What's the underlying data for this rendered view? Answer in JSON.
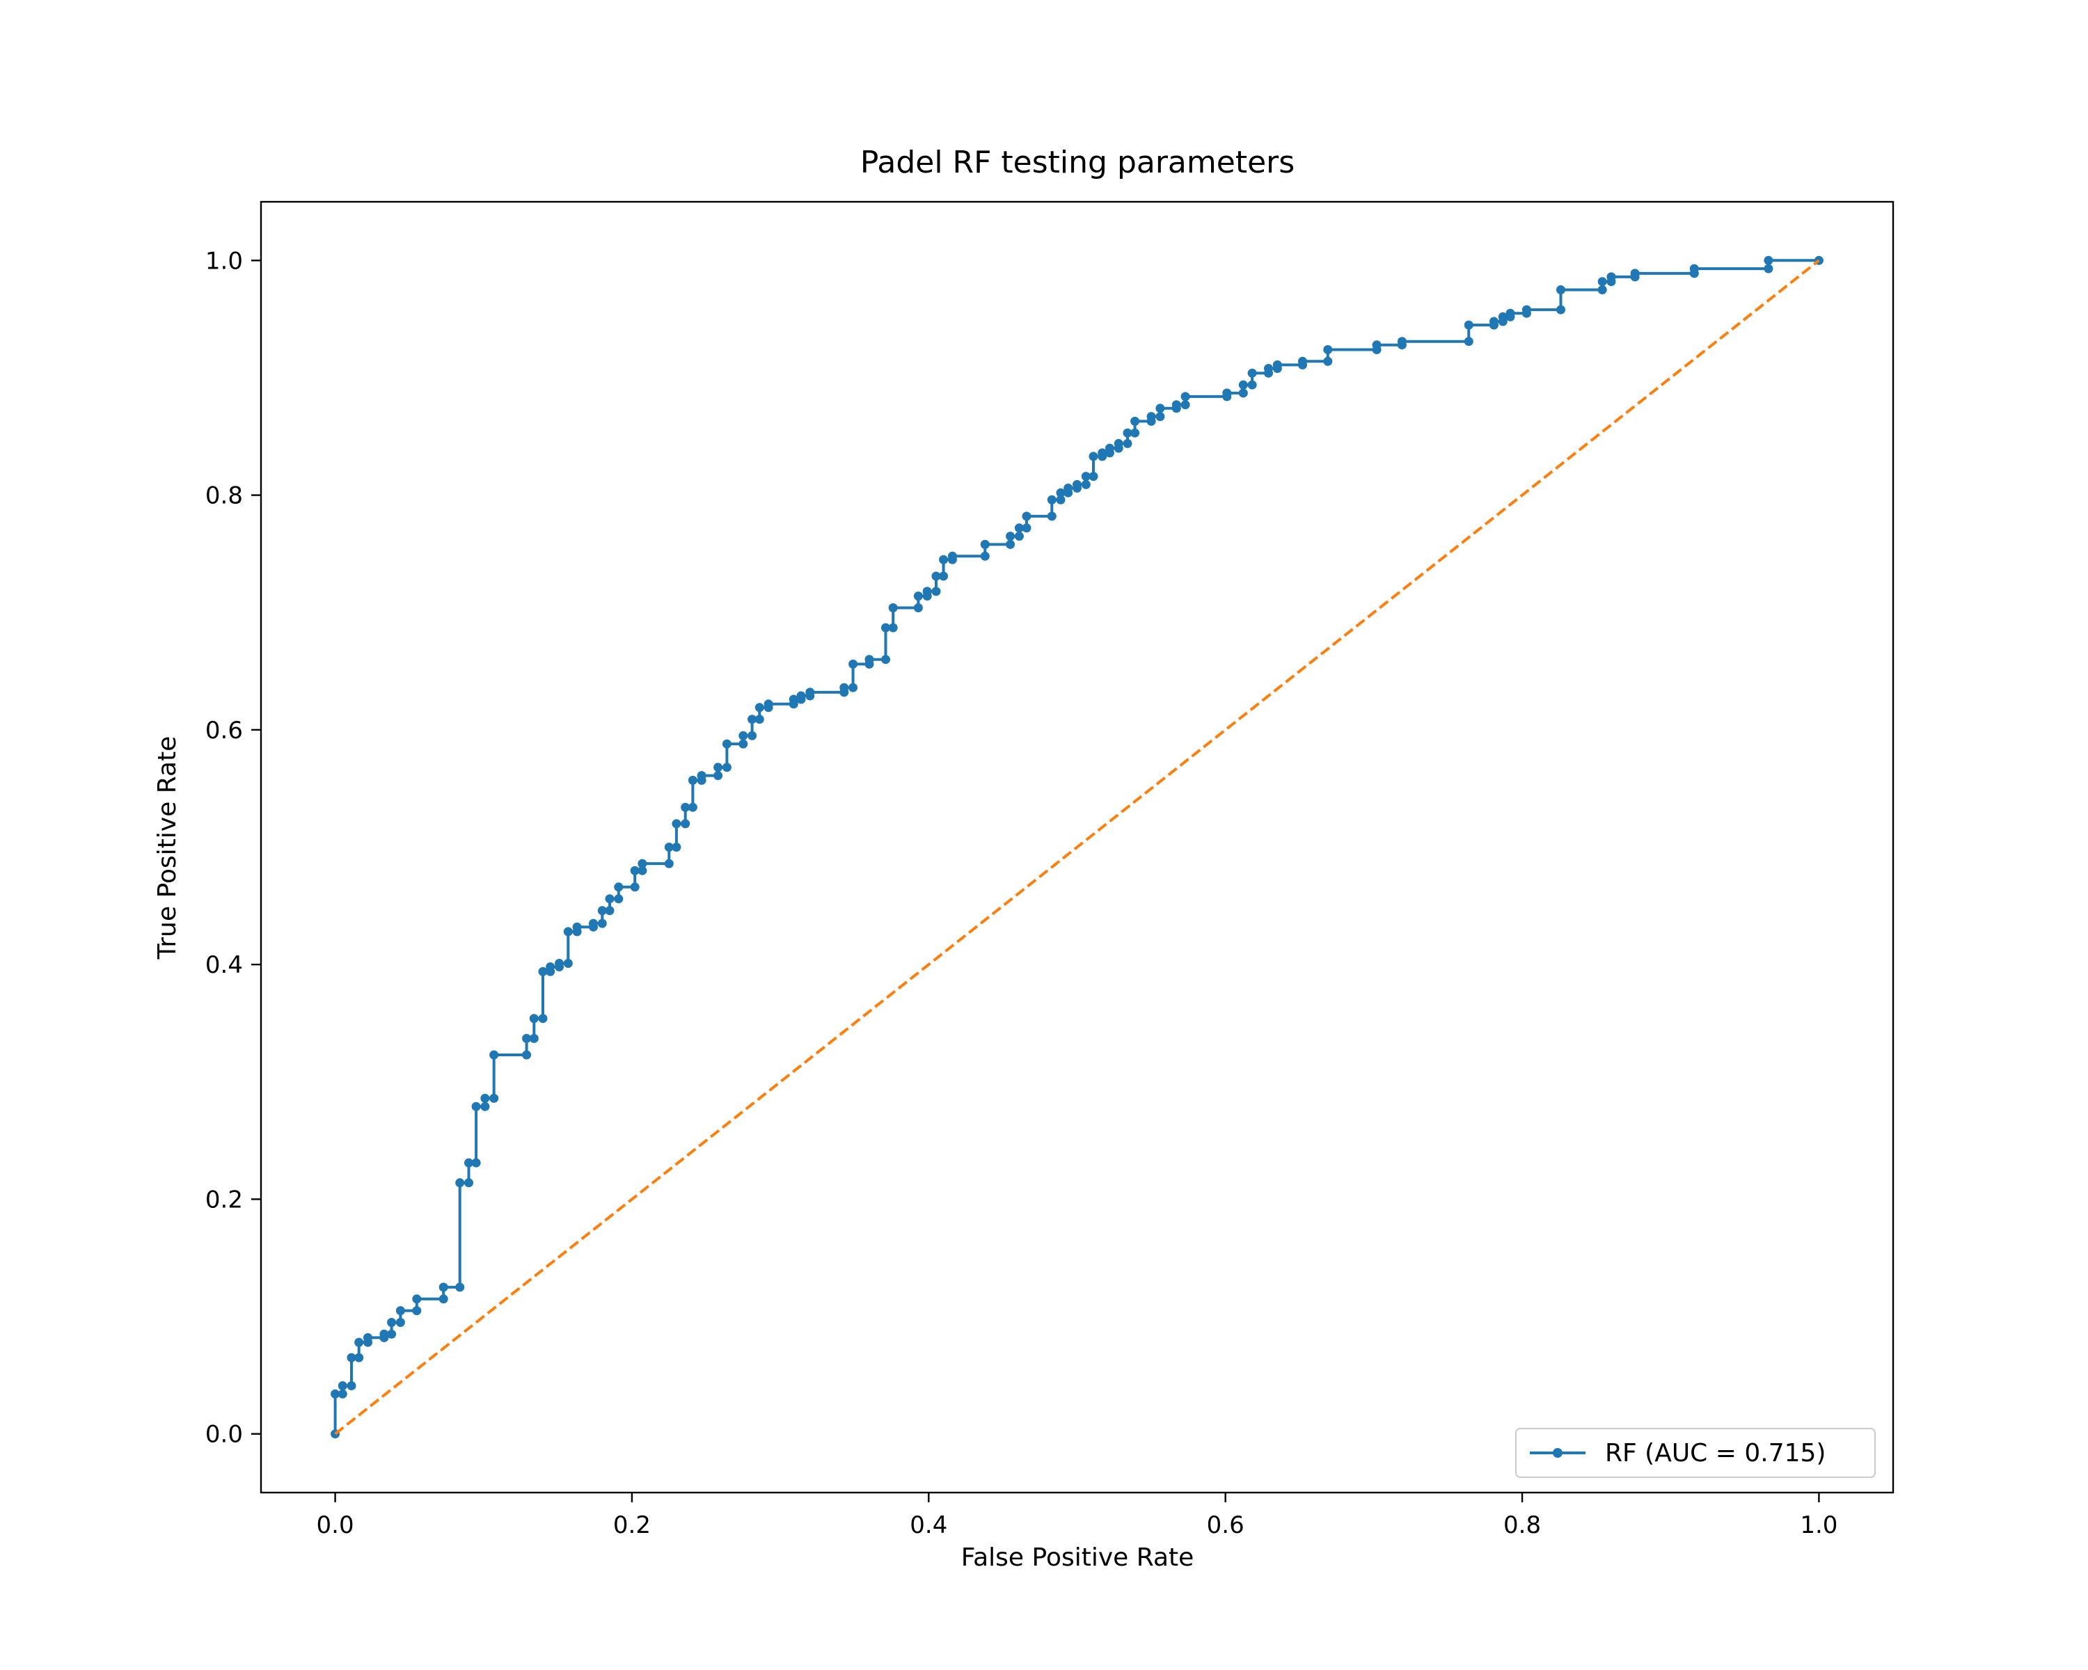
{
  "chart_data": {
    "type": "line",
    "title": "Padel RF testing parameters",
    "xlabel": "False Positive Rate",
    "ylabel": "True Positive Rate",
    "xlim": [
      -0.05,
      1.05
    ],
    "ylim": [
      -0.05,
      1.05
    ],
    "xticks": [
      {
        "value": 0.0,
        "label": "0.0"
      },
      {
        "value": 0.2,
        "label": "0.2"
      },
      {
        "value": 0.4,
        "label": "0.4"
      },
      {
        "value": 0.6,
        "label": "0.6"
      },
      {
        "value": 0.8,
        "label": "0.8"
      },
      {
        "value": 1.0,
        "label": "1.0"
      }
    ],
    "yticks": [
      {
        "value": 0.0,
        "label": "0.0"
      },
      {
        "value": 0.2,
        "label": "0.2"
      },
      {
        "value": 0.4,
        "label": "0.4"
      },
      {
        "value": 0.6,
        "label": "0.6"
      },
      {
        "value": 0.8,
        "label": "0.8"
      },
      {
        "value": 1.0,
        "label": "1.0"
      }
    ],
    "grid": false,
    "legend_position": "lower-right",
    "series": [
      {
        "name": "RF (AUC = 0.715)",
        "color": "#1f77b4",
        "style": "solid",
        "marker": "dot",
        "points": [
          [
            0.0,
            0.0
          ],
          [
            0.0,
            0.034
          ],
          [
            0.005,
            0.034
          ],
          [
            0.005,
            0.041
          ],
          [
            0.011,
            0.041
          ],
          [
            0.011,
            0.065
          ],
          [
            0.016,
            0.065
          ],
          [
            0.016,
            0.078
          ],
          [
            0.022,
            0.078
          ],
          [
            0.022,
            0.082
          ],
          [
            0.033,
            0.082
          ],
          [
            0.033,
            0.085
          ],
          [
            0.038,
            0.085
          ],
          [
            0.038,
            0.095
          ],
          [
            0.044,
            0.095
          ],
          [
            0.044,
            0.105
          ],
          [
            0.055,
            0.105
          ],
          [
            0.055,
            0.115
          ],
          [
            0.073,
            0.115
          ],
          [
            0.073,
            0.125
          ],
          [
            0.084,
            0.125
          ],
          [
            0.084,
            0.214
          ],
          [
            0.09,
            0.214
          ],
          [
            0.09,
            0.231
          ],
          [
            0.095,
            0.231
          ],
          [
            0.095,
            0.279
          ],
          [
            0.101,
            0.279
          ],
          [
            0.101,
            0.286
          ],
          [
            0.107,
            0.286
          ],
          [
            0.107,
            0.323
          ],
          [
            0.129,
            0.323
          ],
          [
            0.129,
            0.337
          ],
          [
            0.134,
            0.337
          ],
          [
            0.134,
            0.354
          ],
          [
            0.14,
            0.354
          ],
          [
            0.14,
            0.394
          ],
          [
            0.145,
            0.394
          ],
          [
            0.145,
            0.398
          ],
          [
            0.151,
            0.398
          ],
          [
            0.151,
            0.401
          ],
          [
            0.157,
            0.401
          ],
          [
            0.157,
            0.428
          ],
          [
            0.163,
            0.428
          ],
          [
            0.163,
            0.432
          ],
          [
            0.174,
            0.432
          ],
          [
            0.174,
            0.435
          ],
          [
            0.18,
            0.435
          ],
          [
            0.18,
            0.446
          ],
          [
            0.185,
            0.446
          ],
          [
            0.185,
            0.456
          ],
          [
            0.191,
            0.456
          ],
          [
            0.191,
            0.466
          ],
          [
            0.202,
            0.466
          ],
          [
            0.202,
            0.48
          ],
          [
            0.207,
            0.48
          ],
          [
            0.207,
            0.486
          ],
          [
            0.225,
            0.486
          ],
          [
            0.225,
            0.5
          ],
          [
            0.23,
            0.5
          ],
          [
            0.23,
            0.52
          ],
          [
            0.236,
            0.52
          ],
          [
            0.236,
            0.534
          ],
          [
            0.241,
            0.534
          ],
          [
            0.241,
            0.557
          ],
          [
            0.247,
            0.557
          ],
          [
            0.247,
            0.561
          ],
          [
            0.258,
            0.561
          ],
          [
            0.258,
            0.568
          ],
          [
            0.264,
            0.568
          ],
          [
            0.264,
            0.588
          ],
          [
            0.275,
            0.588
          ],
          [
            0.275,
            0.595
          ],
          [
            0.281,
            0.595
          ],
          [
            0.281,
            0.609
          ],
          [
            0.286,
            0.609
          ],
          [
            0.286,
            0.619
          ],
          [
            0.292,
            0.619
          ],
          [
            0.292,
            0.622
          ],
          [
            0.309,
            0.622
          ],
          [
            0.309,
            0.626
          ],
          [
            0.314,
            0.626
          ],
          [
            0.314,
            0.629
          ],
          [
            0.32,
            0.629
          ],
          [
            0.32,
            0.632
          ],
          [
            0.343,
            0.632
          ],
          [
            0.343,
            0.636
          ],
          [
            0.349,
            0.636
          ],
          [
            0.349,
            0.656
          ],
          [
            0.36,
            0.656
          ],
          [
            0.36,
            0.66
          ],
          [
            0.371,
            0.66
          ],
          [
            0.371,
            0.687
          ],
          [
            0.376,
            0.687
          ],
          [
            0.376,
            0.704
          ],
          [
            0.393,
            0.704
          ],
          [
            0.393,
            0.714
          ],
          [
            0.399,
            0.714
          ],
          [
            0.399,
            0.718
          ],
          [
            0.405,
            0.718
          ],
          [
            0.405,
            0.731
          ],
          [
            0.41,
            0.731
          ],
          [
            0.41,
            0.745
          ],
          [
            0.416,
            0.745
          ],
          [
            0.416,
            0.748
          ],
          [
            0.438,
            0.748
          ],
          [
            0.438,
            0.758
          ],
          [
            0.455,
            0.758
          ],
          [
            0.455,
            0.765
          ],
          [
            0.461,
            0.765
          ],
          [
            0.461,
            0.772
          ],
          [
            0.466,
            0.772
          ],
          [
            0.466,
            0.782
          ],
          [
            0.483,
            0.782
          ],
          [
            0.483,
            0.796
          ],
          [
            0.489,
            0.796
          ],
          [
            0.489,
            0.802
          ],
          [
            0.494,
            0.802
          ],
          [
            0.494,
            0.806
          ],
          [
            0.5,
            0.806
          ],
          [
            0.5,
            0.809
          ],
          [
            0.506,
            0.809
          ],
          [
            0.506,
            0.816
          ],
          [
            0.511,
            0.816
          ],
          [
            0.511,
            0.833
          ],
          [
            0.517,
            0.833
          ],
          [
            0.517,
            0.836
          ],
          [
            0.522,
            0.836
          ],
          [
            0.522,
            0.84
          ],
          [
            0.528,
            0.84
          ],
          [
            0.528,
            0.844
          ],
          [
            0.534,
            0.844
          ],
          [
            0.534,
            0.853
          ],
          [
            0.539,
            0.853
          ],
          [
            0.539,
            0.863
          ],
          [
            0.55,
            0.863
          ],
          [
            0.55,
            0.867
          ],
          [
            0.556,
            0.867
          ],
          [
            0.556,
            0.874
          ],
          [
            0.567,
            0.874
          ],
          [
            0.567,
            0.877
          ],
          [
            0.573,
            0.877
          ],
          [
            0.573,
            0.884
          ],
          [
            0.601,
            0.884
          ],
          [
            0.601,
            0.887
          ],
          [
            0.612,
            0.887
          ],
          [
            0.612,
            0.894
          ],
          [
            0.618,
            0.894
          ],
          [
            0.618,
            0.904
          ],
          [
            0.629,
            0.904
          ],
          [
            0.629,
            0.908
          ],
          [
            0.635,
            0.908
          ],
          [
            0.635,
            0.911
          ],
          [
            0.652,
            0.911
          ],
          [
            0.652,
            0.914
          ],
          [
            0.669,
            0.914
          ],
          [
            0.669,
            0.924
          ],
          [
            0.702,
            0.924
          ],
          [
            0.702,
            0.928
          ],
          [
            0.719,
            0.928
          ],
          [
            0.719,
            0.931
          ],
          [
            0.764,
            0.931
          ],
          [
            0.764,
            0.945
          ],
          [
            0.781,
            0.945
          ],
          [
            0.781,
            0.948
          ],
          [
            0.787,
            0.948
          ],
          [
            0.787,
            0.952
          ],
          [
            0.792,
            0.952
          ],
          [
            0.792,
            0.955
          ],
          [
            0.803,
            0.955
          ],
          [
            0.803,
            0.958
          ],
          [
            0.826,
            0.958
          ],
          [
            0.826,
            0.975
          ],
          [
            0.854,
            0.975
          ],
          [
            0.854,
            0.982
          ],
          [
            0.86,
            0.982
          ],
          [
            0.86,
            0.986
          ],
          [
            0.876,
            0.986
          ],
          [
            0.876,
            0.989
          ],
          [
            0.916,
            0.989
          ],
          [
            0.916,
            0.993
          ],
          [
            0.966,
            0.993
          ],
          [
            0.966,
            1.0
          ],
          [
            1.0,
            1.0
          ]
        ]
      },
      {
        "name": "",
        "color": "#ff7f0e",
        "style": "dashed",
        "marker": "none",
        "points": [
          [
            0,
            0
          ],
          [
            1,
            1
          ]
        ]
      }
    ]
  }
}
